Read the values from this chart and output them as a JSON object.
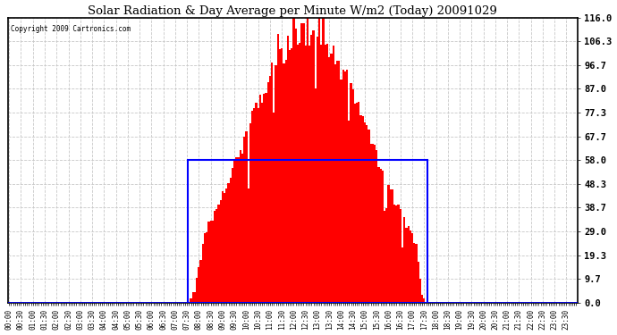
{
  "title": "Solar Radiation & Day Average per Minute W/m2 (Today) 20091029",
  "copyright": "Copyright 2009 Cartronics.com",
  "background_color": "#ffffff",
  "plot_bg_color": "#ffffff",
  "bar_color": "#ff0000",
  "grid_color": "#c8c8c8",
  "blue_rect_color": "#0000ff",
  "y_tick_labels": [
    "0.0",
    "9.7",
    "19.3",
    "29.0",
    "38.7",
    "48.3",
    "58.0",
    "67.7",
    "77.3",
    "87.0",
    "96.7",
    "106.3",
    "116.0"
  ],
  "y_tick_values": [
    0.0,
    9.7,
    19.3,
    29.0,
    38.7,
    48.3,
    58.0,
    67.7,
    77.3,
    87.0,
    96.7,
    106.3,
    116.0
  ],
  "ylim": [
    0.0,
    116.0
  ],
  "day_average": 58.0,
  "sunrise_idx": 91,
  "sunset_idx": 211,
  "total_minutes": 288,
  "minutes_step": 5,
  "figwidth": 6.9,
  "figheight": 3.75,
  "dpi": 100
}
